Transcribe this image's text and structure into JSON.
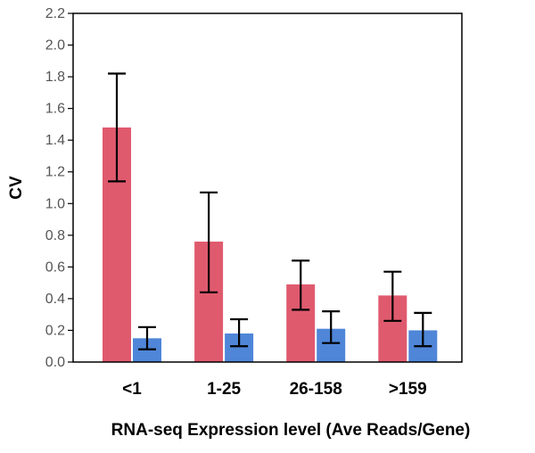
{
  "chart_data": {
    "type": "bar",
    "title": "",
    "xlabel": "RNA-seq Expression level (Ave Reads/Gene)",
    "ylabel": "CV",
    "ylim": [
      0,
      2.2
    ],
    "yticks": [
      "0.0",
      "0.2",
      "0.4",
      "0.6",
      "0.8",
      "1.0",
      "1.2",
      "1.4",
      "1.6",
      "1.8",
      "2.0",
      "2.2"
    ],
    "categories": [
      "<1",
      "1-25",
      "26-158",
      ">159"
    ],
    "grid": false,
    "series": [
      {
        "color": "#e05a6e",
        "values": [
          1.48,
          0.76,
          0.49,
          0.42
        ],
        "error_low": [
          1.14,
          0.44,
          0.33,
          0.26
        ],
        "error_high": [
          1.82,
          1.07,
          0.64,
          0.57
        ]
      },
      {
        "color": "#4f86d8",
        "values": [
          0.15,
          0.18,
          0.21,
          0.2
        ],
        "error_low": [
          0.08,
          0.1,
          0.12,
          0.1
        ],
        "error_high": [
          0.22,
          0.27,
          0.32,
          0.31
        ]
      }
    ]
  }
}
